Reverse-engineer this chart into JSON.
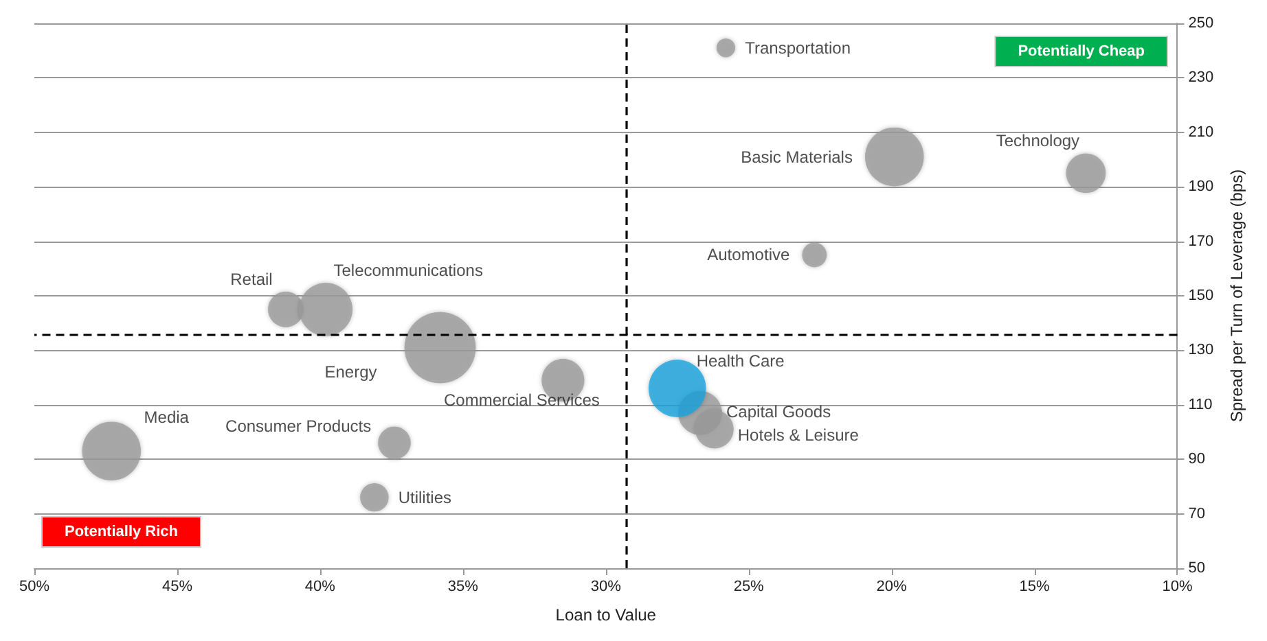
{
  "chart_data": {
    "type": "bubble",
    "xlabel": "Loan to Value",
    "ylabel": "Spread per Turn of Leverage (bps)",
    "xlim": [
      50,
      10
    ],
    "xticks": [
      {
        "value": 50,
        "label": "50%"
      },
      {
        "value": 45,
        "label": "45%"
      },
      {
        "value": 40,
        "label": "40%"
      },
      {
        "value": 35,
        "label": "35%"
      },
      {
        "value": 30,
        "label": "30%"
      },
      {
        "value": 25,
        "label": "25%"
      },
      {
        "value": 20,
        "label": "20%"
      },
      {
        "value": 15,
        "label": "15%"
      },
      {
        "value": 10,
        "label": "10%"
      }
    ],
    "ylim": [
      50,
      250
    ],
    "yticks": [
      50,
      70,
      90,
      110,
      130,
      150,
      170,
      190,
      210,
      230,
      250
    ],
    "grid": "y",
    "legend": false,
    "marker": "circle",
    "series": [
      {
        "name": "Transportation",
        "color": "#9a9a9a",
        "x": [
          25.8
        ],
        "values": [
          241
        ],
        "sizes": [
          0.07
        ]
      },
      {
        "name": "Basic Materials",
        "color": "#9a9a9a",
        "x": [
          19.9
        ],
        "values": [
          201
        ],
        "sizes": [
          0.68
        ]
      },
      {
        "name": "Technology",
        "color": "#9a9a9a",
        "x": [
          13.2
        ],
        "values": [
          195
        ],
        "sizes": [
          0.31
        ]
      },
      {
        "name": "Automotive",
        "color": "#9a9a9a",
        "x": [
          22.7
        ],
        "values": [
          165
        ],
        "sizes": [
          0.12
        ]
      },
      {
        "name": "Retail",
        "color": "#9a9a9a",
        "x": [
          41.2
        ],
        "values": [
          145
        ],
        "sizes": [
          0.25
        ]
      },
      {
        "name": "Telecommunications",
        "color": "#9a9a9a",
        "x": [
          39.8
        ],
        "values": [
          145
        ],
        "sizes": [
          0.56
        ]
      },
      {
        "name": "Energy",
        "color": "#9a9a9a",
        "x": [
          35.8
        ],
        "values": [
          131
        ],
        "sizes": [
          1
        ]
      },
      {
        "name": "Commercial Services",
        "color": "#9a9a9a",
        "x": [
          31.5
        ],
        "values": [
          119
        ],
        "sizes": [
          0.36
        ]
      },
      {
        "name": "Capital Goods",
        "color": "#9a9a9a",
        "x": [
          26.7
        ],
        "values": [
          107
        ],
        "sizes": [
          0.38
        ]
      },
      {
        "name": "Hotels & Leisure",
        "color": "#9a9a9a",
        "x": [
          26.2
        ],
        "values": [
          101
        ],
        "sizes": [
          0.29
        ]
      },
      {
        "name": "Health Care",
        "color": "#1aa3dc",
        "x": [
          27.5
        ],
        "values": [
          116
        ],
        "sizes": [
          0.65
        ]
      },
      {
        "name": "Media",
        "color": "#9a9a9a",
        "x": [
          47.3
        ],
        "values": [
          93
        ],
        "sizes": [
          0.68
        ]
      },
      {
        "name": "Consumer Products",
        "color": "#9a9a9a",
        "x": [
          37.4
        ],
        "values": [
          96
        ],
        "sizes": [
          0.21
        ]
      },
      {
        "name": "Utilities",
        "color": "#9a9a9a",
        "x": [
          38.1
        ],
        "values": [
          76
        ],
        "sizes": [
          0.16
        ]
      }
    ],
    "ref_lines": [
      {
        "axis": "x",
        "value": 29.3,
        "color": "#000000",
        "line_style": "dashed"
      },
      {
        "axis": "y",
        "value": 136,
        "color": "#000000",
        "line_style": "dashed"
      }
    ],
    "annotations": [
      "Potentially Cheap",
      "Potentially Rich"
    ]
  }
}
